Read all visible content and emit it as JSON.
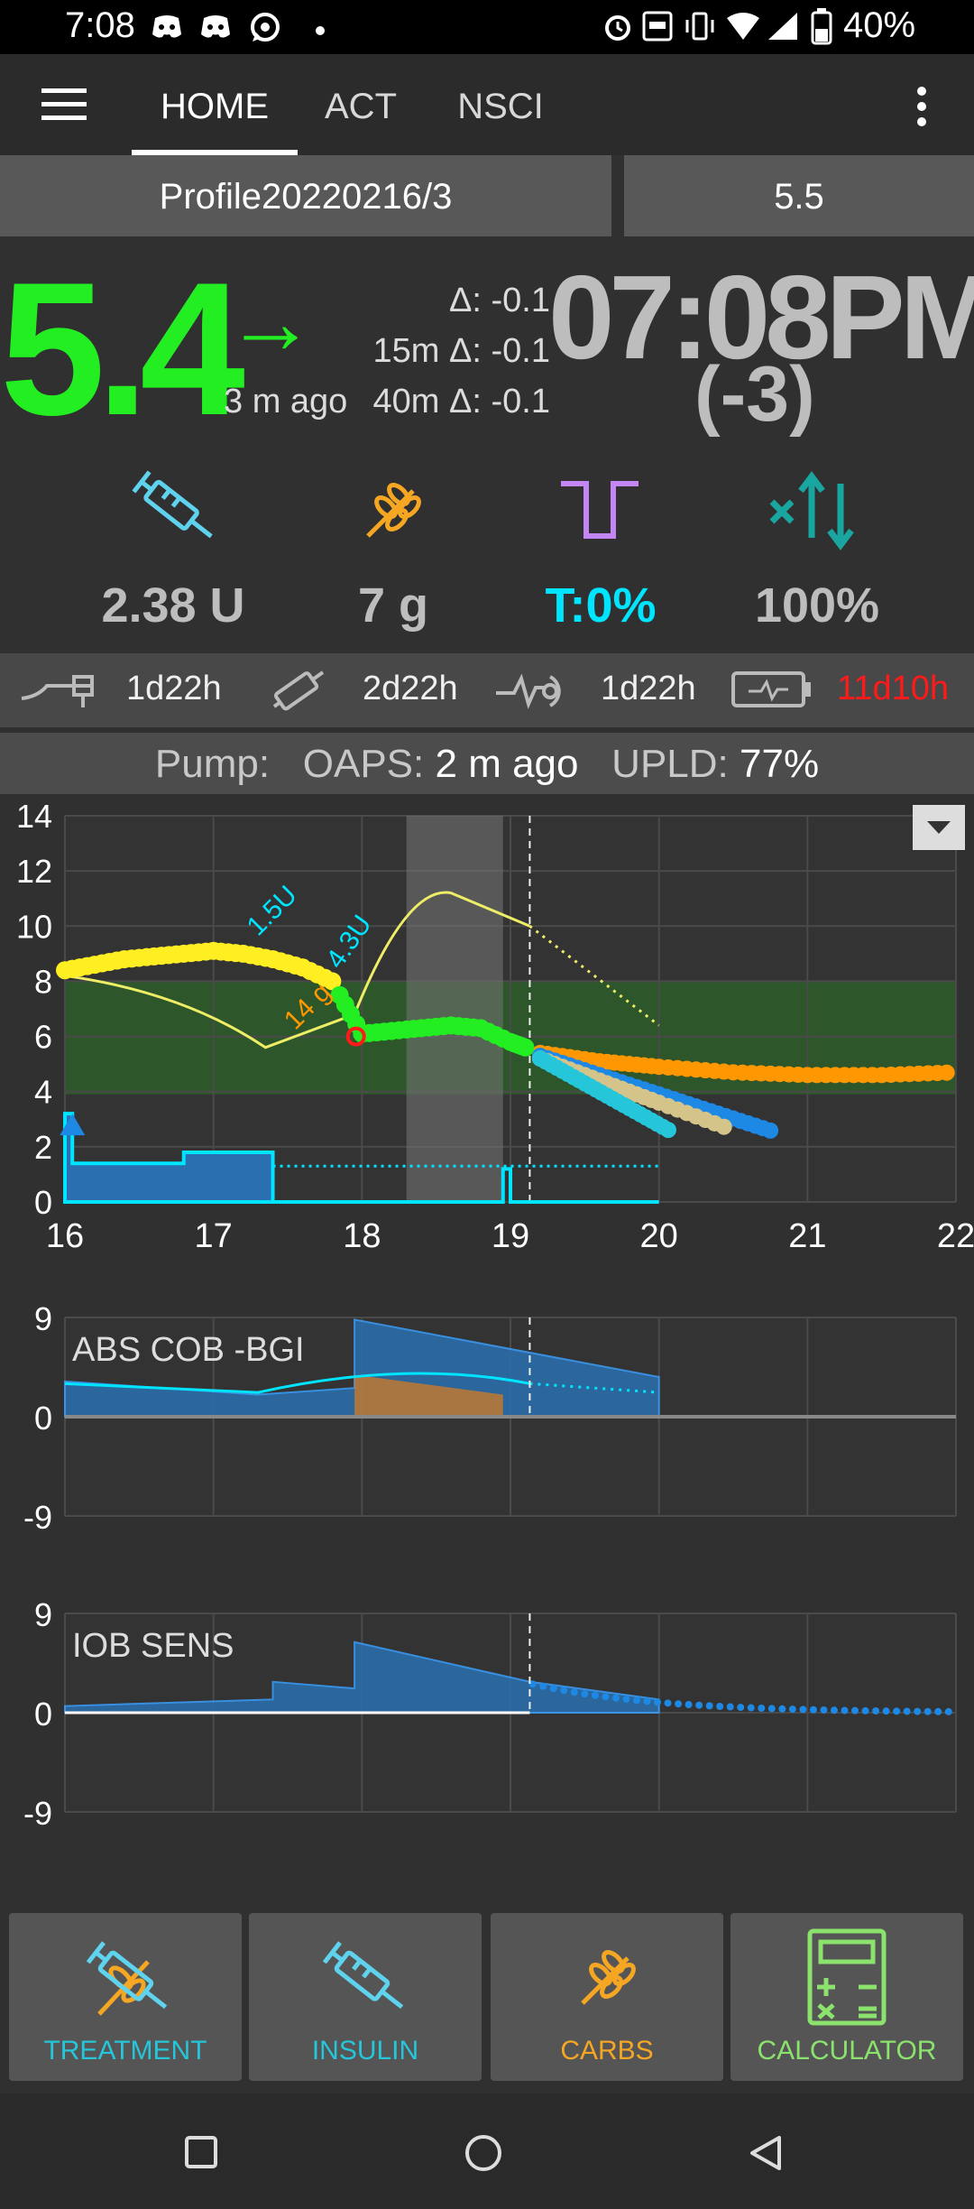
{
  "status_bar": {
    "time": "7:08",
    "battery": "40%"
  },
  "tabs": [
    {
      "label": "HOME",
      "active": true
    },
    {
      "label": "ACT",
      "active": false
    },
    {
      "label": "NSCI",
      "active": false
    }
  ],
  "profile": {
    "name": "Profile20220216/3",
    "target": "5.5"
  },
  "bg": {
    "value": "5.4",
    "trend": "→",
    "age": "3 m ago",
    "delta": "Δ: -0.1",
    "delta_15m": "15m Δ: -0.1",
    "delta_40m": "40m Δ: -0.1"
  },
  "clock": {
    "time": "07:08PM",
    "diff": "(-3)"
  },
  "stats": {
    "insulin": "2.38 U",
    "carbs": "7 g",
    "temp_basal": "T:0%",
    "profile_pct": "100%"
  },
  "ages": {
    "cannula": "1d22h",
    "reservoir": "2d22h",
    "sensor": "1d22h",
    "battery": "11d10h"
  },
  "pump_status": {
    "pump_label": "Pump:",
    "oaps_label": "OAPS:",
    "oaps_value": "2 m ago",
    "upld_label": "UPLD:",
    "upld_value": "77%"
  },
  "colors": {
    "bg_green": "#22ee22",
    "cyan": "#00e5ff",
    "orange": "#ff9800",
    "yellow": "#ffee22",
    "red": "#ff1a1a",
    "carbs": "#f5a623",
    "calc_green": "#8be36d"
  },
  "chart_data": [
    {
      "type": "line",
      "title": "",
      "x_ticks": [
        "16",
        "17",
        "18",
        "19",
        "20",
        "21",
        "22"
      ],
      "y_ticks": [
        "14",
        "12",
        "10",
        "8",
        "6",
        "4",
        "2",
        "0"
      ],
      "xlim": [
        16,
        22
      ],
      "ylim": [
        0,
        14
      ],
      "target_range": [
        3.9,
        8.0
      ],
      "annotations": [
        "1.5U",
        "4.3U",
        "14 g"
      ],
      "series": [
        {
          "name": "",
          "color": "#ffee22",
          "x": [
            16.0,
            16.2,
            16.4,
            16.6,
            16.8,
            17.0,
            17.2,
            17.4,
            17.6,
            17.8
          ],
          "values": [
            8.4,
            8.6,
            8.8,
            8.9,
            9.0,
            9.1,
            9.0,
            8.8,
            8.5,
            8.0
          ]
        },
        {
          "name": "",
          "color": "#22ee22",
          "x": [
            17.85,
            18.0,
            18.2,
            18.4,
            18.6,
            18.8,
            19.0,
            19.1
          ],
          "values": [
            7.5,
            6.1,
            6.2,
            6.3,
            6.4,
            6.3,
            5.8,
            5.6
          ]
        }
      ],
      "predictions": [
        {
          "color": "#ff9800",
          "x": [
            19.2,
            19.6,
            20.0,
            20.5,
            21.0,
            21.5,
            22.0
          ],
          "values": [
            5.4,
            5.1,
            4.9,
            4.7,
            4.6,
            4.6,
            4.7
          ]
        },
        {
          "color": "#1e88e5",
          "x": [
            19.2,
            19.6,
            20.0,
            20.4,
            20.8
          ],
          "values": [
            5.3,
            4.6,
            3.9,
            3.2,
            2.5
          ]
        },
        {
          "color": "#d4c48a",
          "x": [
            19.2,
            19.6,
            20.0,
            20.5
          ],
          "values": [
            5.2,
            4.4,
            3.6,
            2.6
          ]
        },
        {
          "color": "#26c6da",
          "x": [
            19.2,
            19.5,
            19.8,
            20.1
          ],
          "values": [
            5.2,
            4.3,
            3.4,
            2.5
          ]
        }
      ]
    },
    {
      "type": "area",
      "title": "ABS COB -BGI",
      "y_ticks": [
        "9",
        "0",
        "-9"
      ],
      "ylim": [
        -9,
        9
      ]
    },
    {
      "type": "area",
      "title": "IOB SENS",
      "y_ticks": [
        "9",
        "0",
        "-9"
      ],
      "ylim": [
        -9,
        9
      ]
    }
  ],
  "actions": [
    {
      "label": "TREATMENT",
      "color": "#26c6da"
    },
    {
      "label": "INSULIN",
      "color": "#26c6da"
    },
    {
      "label": "CARBS",
      "color": "#f5a623"
    },
    {
      "label": "CALCULATOR",
      "color": "#8be36d"
    }
  ]
}
